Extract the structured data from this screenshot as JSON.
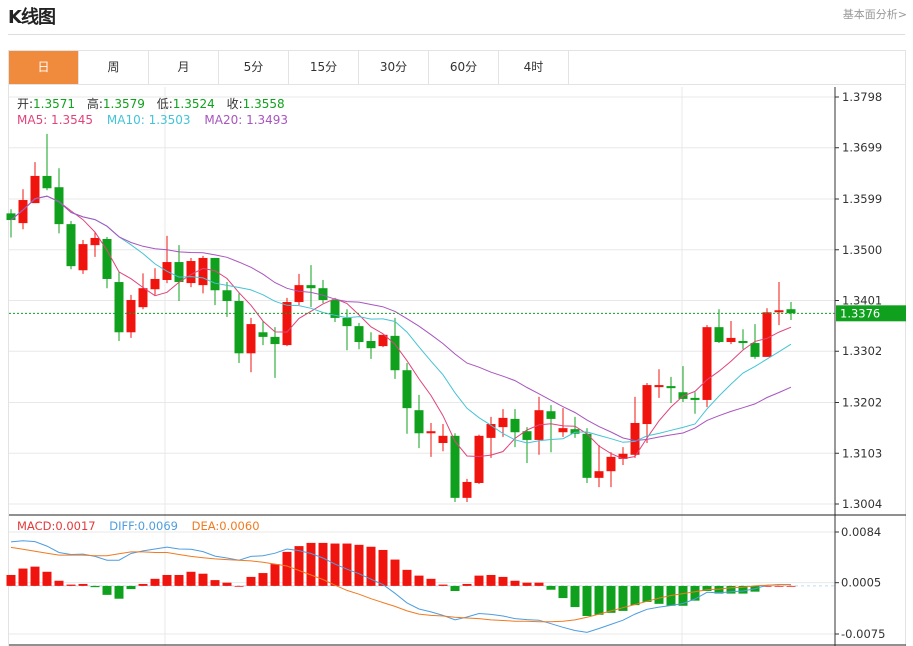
{
  "header": {
    "title": "K线图",
    "link": "基本面分析>"
  },
  "tabs": [
    {
      "label": "日",
      "active": true
    },
    {
      "label": "周"
    },
    {
      "label": "月"
    },
    {
      "label": "5分"
    },
    {
      "label": "15分"
    },
    {
      "label": "30分"
    },
    {
      "label": "60分"
    },
    {
      "label": "4时"
    }
  ],
  "ohlc": {
    "open_label": "开:",
    "open": "1.3571",
    "high_label": "高:",
    "high": "1.3579",
    "low_label": "低:",
    "low": "1.3524",
    "close_label": "收:",
    "close": "1.3558"
  },
  "ma_legend": {
    "ma5": "MA5: 1.3545",
    "ma10": "MA10: 1.3503",
    "ma20": "MA20: 1.3493"
  },
  "macd_legend": {
    "macd": "MACD:0.0017",
    "diff": "DIFF:0.0069",
    "dea": "DEA:0.0060"
  },
  "colors": {
    "up": "#f0140f",
    "down": "#0fa01e",
    "ma5": "#e0447c",
    "ma10": "#45c3d6",
    "ma20": "#a855bf",
    "diff": "#4d9de0",
    "dea": "#f07a22",
    "active_tab": "#f08a3c",
    "last_price_bg": "#0fa01e"
  },
  "chart_data": [
    {
      "type": "candlestick",
      "price_ticks": [
        "1.3798",
        "1.3699",
        "1.3599",
        "1.3500",
        "1.3401",
        "1.3302",
        "1.3202",
        "1.3103",
        "1.3004"
      ],
      "ylim": [
        1.3004,
        1.3798
      ],
      "last_price": "1.3376",
      "ma_periods": [
        5,
        10,
        20
      ],
      "grid": true,
      "candles": [
        [
          1.3571,
          1.3579,
          1.3524,
          1.3558
        ],
        [
          1.3552,
          1.3618,
          1.354,
          1.3597
        ],
        [
          1.3591,
          1.3671,
          1.3591,
          1.3644
        ],
        [
          1.3644,
          1.3726,
          1.3616,
          1.362
        ],
        [
          1.3622,
          1.3659,
          1.3532,
          1.355
        ],
        [
          1.355,
          1.3556,
          1.3462,
          1.3468
        ],
        [
          1.346,
          1.3519,
          1.3453,
          1.3511
        ],
        [
          1.3509,
          1.3534,
          1.3486,
          1.3523
        ],
        [
          1.3521,
          1.3525,
          1.3425,
          1.3443
        ],
        [
          1.3437,
          1.3456,
          1.3322,
          1.3339
        ],
        [
          1.3339,
          1.3412,
          1.3328,
          1.3402
        ],
        [
          1.3388,
          1.3454,
          1.3384,
          1.3425
        ],
        [
          1.3423,
          1.3464,
          1.3412,
          1.3443
        ],
        [
          1.3441,
          1.3527,
          1.3435,
          1.3476
        ],
        [
          1.3476,
          1.3509,
          1.34,
          1.3437
        ],
        [
          1.3435,
          1.3484,
          1.3427,
          1.3478
        ],
        [
          1.3431,
          1.3488,
          1.3415,
          1.3484
        ],
        [
          1.3484,
          1.3484,
          1.3392,
          1.3421
        ],
        [
          1.3421,
          1.3437,
          1.3369,
          1.34
        ],
        [
          1.34,
          1.3415,
          1.3279,
          1.3298
        ],
        [
          1.3298,
          1.3367,
          1.3261,
          1.3355
        ],
        [
          1.3339,
          1.3361,
          1.3314,
          1.333
        ],
        [
          1.333,
          1.3349,
          1.325,
          1.3316
        ],
        [
          1.3314,
          1.3406,
          1.3312,
          1.3398
        ],
        [
          1.3398,
          1.3453,
          1.3392,
          1.3431
        ],
        [
          1.3431,
          1.347,
          1.3388,
          1.3425
        ],
        [
          1.3425,
          1.3441,
          1.3396,
          1.3402
        ],
        [
          1.3402,
          1.3406,
          1.3359,
          1.3367
        ],
        [
          1.3367,
          1.3384,
          1.3304,
          1.3351
        ],
        [
          1.3351,
          1.3357,
          1.3306,
          1.332
        ],
        [
          1.3322,
          1.3339,
          1.3287,
          1.3308
        ],
        [
          1.3312,
          1.3334,
          1.331,
          1.3334
        ],
        [
          1.3332,
          1.3367,
          1.3248,
          1.3265
        ],
        [
          1.3265,
          1.3279,
          1.3141,
          1.3191
        ],
        [
          1.3187,
          1.3217,
          1.3113,
          1.3142
        ],
        [
          1.3142,
          1.3162,
          1.3096,
          1.3146
        ],
        [
          1.3123,
          1.316,
          1.3107,
          1.3137
        ],
        [
          1.3137,
          1.3142,
          1.3008,
          1.3016
        ],
        [
          1.3016,
          1.3053,
          1.3008,
          1.3047
        ],
        [
          1.3045,
          1.3139,
          1.3043,
          1.3137
        ],
        [
          1.3133,
          1.3174,
          1.3094,
          1.316
        ],
        [
          1.3154,
          1.3189,
          1.3135,
          1.3172
        ],
        [
          1.317,
          1.3189,
          1.3115,
          1.3144
        ],
        [
          1.3146,
          1.3154,
          1.3084,
          1.3129
        ],
        [
          1.3129,
          1.3213,
          1.31,
          1.3187
        ],
        [
          1.3185,
          1.3197,
          1.3105,
          1.317
        ],
        [
          1.3144,
          1.3191,
          1.3135,
          1.3152
        ],
        [
          1.315,
          1.3174,
          1.3133,
          1.3141
        ],
        [
          1.3141,
          1.3152,
          1.3045,
          1.3055
        ],
        [
          1.3055,
          1.3119,
          1.3037,
          1.3068
        ],
        [
          1.3068,
          1.3105,
          1.3037,
          1.3096
        ],
        [
          1.3092,
          1.3115,
          1.308,
          1.3102
        ],
        [
          1.31,
          1.3213,
          1.3094,
          1.3162
        ],
        [
          1.316,
          1.324,
          1.3123,
          1.3236
        ],
        [
          1.3232,
          1.3267,
          1.3211,
          1.3236
        ],
        [
          1.3234,
          1.3252,
          1.3201,
          1.323
        ],
        [
          1.3222,
          1.3273,
          1.3203,
          1.3209
        ],
        [
          1.3211,
          1.3222,
          1.318,
          1.3207
        ],
        [
          1.3207,
          1.3353,
          1.3193,
          1.3349
        ],
        [
          1.3349,
          1.3384,
          1.3318,
          1.332
        ],
        [
          1.332,
          1.3361,
          1.3316,
          1.3328
        ],
        [
          1.3322,
          1.3345,
          1.3306,
          1.3318
        ],
        [
          1.3318,
          1.3355,
          1.3287,
          1.3291
        ],
        [
          1.3291,
          1.3386,
          1.3291,
          1.3378
        ],
        [
          1.3378,
          1.3437,
          1.3353,
          1.3382
        ],
        [
          1.3384,
          1.3398,
          1.3363,
          1.3376
        ]
      ]
    },
    {
      "type": "macd",
      "ticks": [
        "0.0084",
        "0.0005",
        "-0.0075"
      ],
      "ylim": [
        -0.0075,
        0.0084
      ],
      "macd": [
        0.0017,
        0.0027,
        0.003,
        0.0022,
        0.0008,
        0.0002,
        0.0003,
        -0.0002,
        -0.0014,
        -0.002,
        -0.0005,
        0.0003,
        0.0011,
        0.0017,
        0.0017,
        0.0022,
        0.0019,
        0.0009,
        0.0005,
        0.0,
        0.0014,
        0.002,
        0.0034,
        0.0053,
        0.0062,
        0.0067,
        0.0067,
        0.0066,
        0.0066,
        0.0064,
        0.0061,
        0.0056,
        0.0041,
        0.0025,
        0.0016,
        0.0011,
        0.0002,
        -0.0008,
        0.0003,
        0.0016,
        0.0017,
        0.0014,
        0.0008,
        0.0005,
        0.0005,
        -0.0006,
        -0.0019,
        -0.0033,
        -0.0047,
        -0.0045,
        -0.0042,
        -0.0039,
        -0.003,
        -0.0025,
        -0.0028,
        -0.0031,
        -0.0031,
        -0.0023,
        -0.0008,
        -0.0012,
        -0.0012,
        -0.0012,
        -0.0009,
        0.0,
        0.0,
        0.0
      ],
      "dea": [
        0.006,
        0.0057,
        0.0054,
        0.0051,
        0.0048,
        0.0048,
        0.0048,
        0.0047,
        0.0047,
        0.005,
        0.0053,
        0.0053,
        0.0052,
        0.0052,
        0.0049,
        0.0046,
        0.0044,
        0.0042,
        0.0041,
        0.004,
        0.0039,
        0.0037,
        0.0034,
        0.0031,
        0.0024,
        0.0017,
        0.001,
        0.0001,
        -0.0007,
        -0.0013,
        -0.002,
        -0.0026,
        -0.0032,
        -0.0039,
        -0.0044,
        -0.0046,
        -0.0047,
        -0.0049,
        -0.005,
        -0.0051,
        -0.0053,
        -0.0054,
        -0.0055,
        -0.0055,
        -0.0056,
        -0.0056,
        -0.0055,
        -0.0053,
        -0.0049,
        -0.0044,
        -0.0039,
        -0.0034,
        -0.0029,
        -0.0024,
        -0.0019,
        -0.0015,
        -0.0012,
        -0.0009,
        -0.0006,
        -0.0005,
        -0.0003,
        -0.0002,
        0.0,
        0.0001,
        0.0002,
        0.0002
      ]
    }
  ]
}
